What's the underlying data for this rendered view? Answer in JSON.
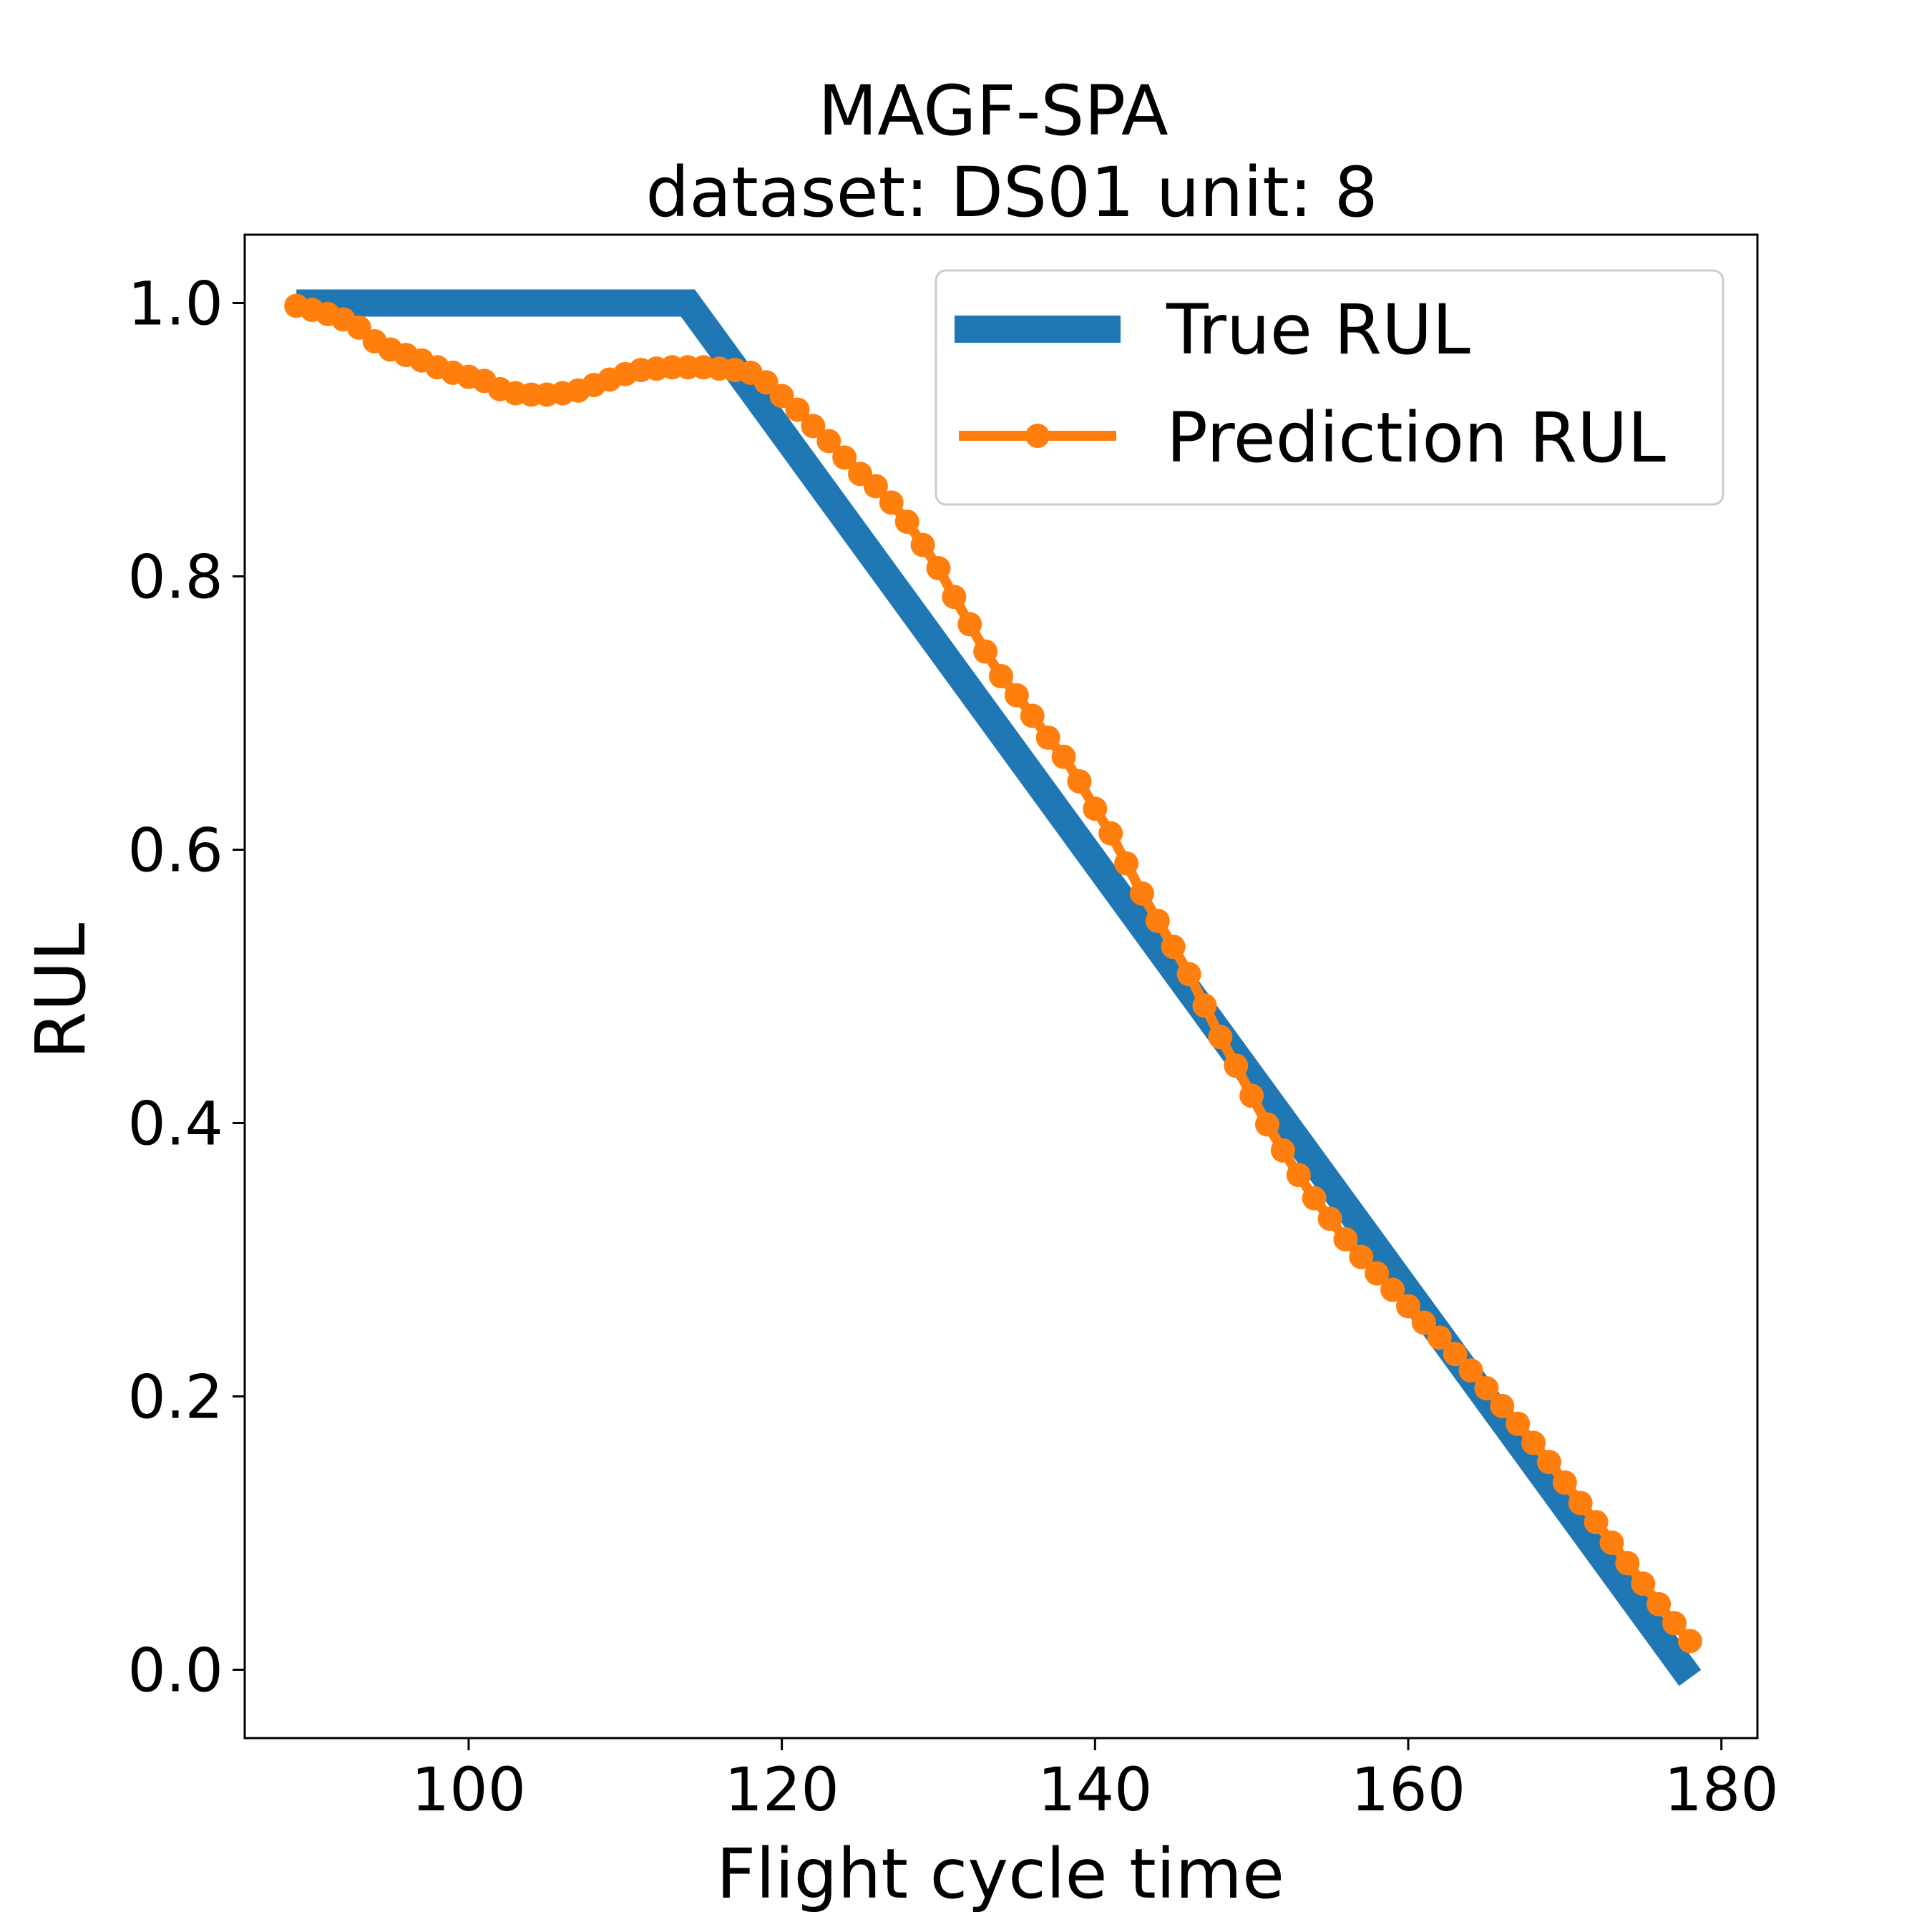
{
  "chart_data": {
    "type": "line",
    "title": "MAGF-SPA",
    "subtitle": "dataset: DS01 unit: 8",
    "xlabel": "Flight cycle time",
    "ylabel": "RUL",
    "xlim": [
      85.7,
      182.3
    ],
    "ylim": [
      -0.05,
      1.05
    ],
    "xticks": [
      100,
      120,
      140,
      160,
      180
    ],
    "yticks": [
      0.0,
      0.2,
      0.4,
      0.6,
      0.8,
      1.0
    ],
    "xtick_labels": [
      "100",
      "120",
      "140",
      "160",
      "180"
    ],
    "ytick_labels": [
      "0.0",
      "0.2",
      "0.4",
      "0.6",
      "0.8",
      "1.0"
    ],
    "grid": false,
    "legend_position": "top-right",
    "series": [
      {
        "name": "True RUL",
        "color": "#1f77b4",
        "marker": "none",
        "points": [
          [
            89,
            1.0
          ],
          [
            114,
            1.0
          ],
          [
            178,
            -0.006
          ]
        ]
      },
      {
        "name": "Prediction RUL",
        "color": "#ff7f0e",
        "marker": "circle",
        "x": [
          89,
          90,
          91,
          92,
          93,
          94,
          95,
          96,
          97,
          98,
          99,
          100,
          101,
          102,
          103,
          104,
          105,
          106,
          107,
          108,
          109,
          110,
          111,
          112,
          113,
          114,
          115,
          116,
          117,
          118,
          119,
          120,
          121,
          122,
          123,
          124,
          125,
          126,
          127,
          128,
          129,
          130,
          131,
          132,
          133,
          134,
          135,
          136,
          137,
          138,
          139,
          140,
          141,
          142,
          143,
          144,
          145,
          146,
          147,
          148,
          149,
          150,
          151,
          152,
          153,
          154,
          155,
          156,
          157,
          158,
          159,
          160,
          161,
          162,
          163,
          164,
          165,
          166,
          167,
          168,
          169,
          170,
          171,
          172,
          173,
          174,
          175,
          176,
          177,
          178
        ],
        "y": [
          0.998,
          0.995,
          0.992,
          0.988,
          0.982,
          0.972,
          0.966,
          0.962,
          0.958,
          0.953,
          0.949,
          0.946,
          0.943,
          0.937,
          0.934,
          0.933,
          0.933,
          0.934,
          0.936,
          0.94,
          0.944,
          0.948,
          0.951,
          0.952,
          0.953,
          0.953,
          0.953,
          0.952,
          0.951,
          0.949,
          0.942,
          0.932,
          0.922,
          0.91,
          0.899,
          0.887,
          0.875,
          0.866,
          0.854,
          0.84,
          0.823,
          0.806,
          0.785,
          0.765,
          0.745,
          0.727,
          0.713,
          0.698,
          0.682,
          0.668,
          0.65,
          0.63,
          0.612,
          0.59,
          0.568,
          0.548,
          0.529,
          0.509,
          0.486,
          0.463,
          0.442,
          0.42,
          0.399,
          0.38,
          0.362,
          0.345,
          0.33,
          0.315,
          0.302,
          0.29,
          0.278,
          0.266,
          0.254,
          0.243,
          0.231,
          0.219,
          0.206,
          0.193,
          0.18,
          0.166,
          0.152,
          0.137,
          0.122,
          0.108,
          0.093,
          0.078,
          0.063,
          0.048,
          0.034,
          0.021
        ]
      }
    ]
  }
}
